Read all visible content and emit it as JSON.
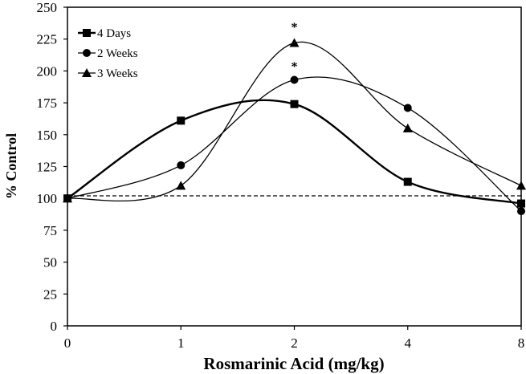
{
  "chart_data": {
    "type": "line",
    "title": "",
    "xlabel": "Rosmarinic Acid (mg/kg)",
    "ylabel": "% Control",
    "categories": [
      "0",
      "1",
      "2",
      "4",
      "8"
    ],
    "ylim": [
      0,
      250
    ],
    "yticks": [
      0,
      25,
      50,
      75,
      100,
      125,
      150,
      175,
      200,
      225,
      250
    ],
    "grid": false,
    "legend_position": "top-left",
    "reference_line": {
      "value": 102,
      "style": "dashed"
    },
    "series": [
      {
        "name": "4 Days",
        "marker": "square",
        "values": [
          100,
          161,
          174,
          113,
          96
        ]
      },
      {
        "name": "2 Weeks",
        "marker": "circle",
        "values": [
          100,
          126,
          193,
          171,
          90
        ]
      },
      {
        "name": "3 Weeks",
        "marker": "triangle",
        "values": [
          100,
          110,
          222,
          155,
          110
        ]
      }
    ],
    "annotations": [
      {
        "text": "*",
        "category": "2",
        "y": 235
      },
      {
        "text": "*",
        "category": "2",
        "y": 204
      }
    ]
  }
}
